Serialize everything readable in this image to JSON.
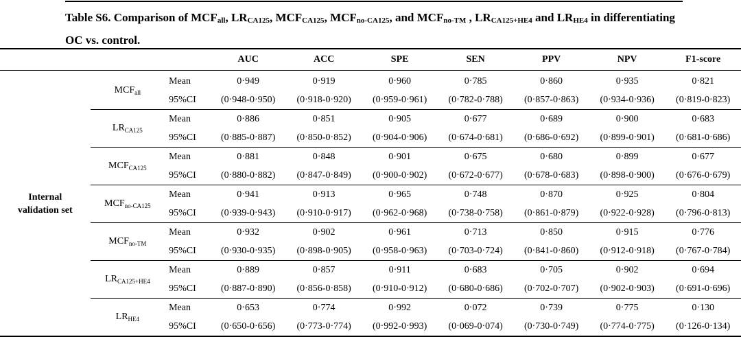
{
  "caption": {
    "line1_prefix": "Table S6. Comparison of MCF",
    "line1_parts": [
      {
        "base": "MCF",
        "sub": "all",
        "sep": ", "
      },
      {
        "base": "LR",
        "sub": "CA125",
        "sep": ", "
      },
      {
        "base": "MCF",
        "sub": "CA125",
        "sep": ", "
      },
      {
        "base": "MCF",
        "sub": "no-CA125",
        "sep": ", and "
      },
      {
        "base": "MCF",
        "sub": "no-TM",
        "sep": " , "
      },
      {
        "base": "LR",
        "sub": "CA125+HE4",
        "sep": " and "
      },
      {
        "base": "LR",
        "sub": "HE4",
        "sep": ""
      }
    ],
    "line1_suffix": " in differentiating",
    "line2": "OC vs. control."
  },
  "table": {
    "headers": [
      "AUC",
      "ACC",
      "SPE",
      "SEN",
      "PPV",
      "NPV",
      "F1-score"
    ],
    "set_label_line1": "Internal",
    "set_label_line2": "validation set",
    "stat_labels": [
      "Mean",
      "95%CI"
    ],
    "models": [
      {
        "base": "MCF",
        "sub": "all",
        "mean": [
          "0·949",
          "0·919",
          "0·960",
          "0·785",
          "0·860",
          "0·935",
          "0·821"
        ],
        "ci": [
          "(0·948-0·950)",
          "(0·918-0·920)",
          "(0·959-0·961)",
          "(0·782-0·788)",
          "(0·857-0·863)",
          "(0·934-0·936)",
          "(0·819-0·823)"
        ]
      },
      {
        "base": "LR",
        "sub": "CA125",
        "mean": [
          "0·886",
          "0·851",
          "0·905",
          "0·677",
          "0·689",
          "0·900",
          "0·683"
        ],
        "ci": [
          "(0·885-0·887)",
          "(0·850-0·852)",
          "(0·904-0·906)",
          "(0·674-0·681)",
          "(0·686-0·692)",
          "(0·899-0·901)",
          "(0·681-0·686)"
        ]
      },
      {
        "base": "MCF",
        "sub": "CA125",
        "mean": [
          "0·881",
          "0·848",
          "0·901",
          "0·675",
          "0·680",
          "0·899",
          "0·677"
        ],
        "ci": [
          "(0·880-0·882)",
          "(0·847-0·849)",
          "(0·900-0·902)",
          "(0·672-0·677)",
          "(0·678-0·683)",
          "(0·898-0·900)",
          "(0·676-0·679)"
        ]
      },
      {
        "base": "MCF",
        "sub": "no-CA125",
        "mean": [
          "0·941",
          "0·913",
          "0·965",
          "0·748",
          "0·870",
          "0·925",
          "0·804"
        ],
        "ci": [
          "(0·939-0·943)",
          "(0·910-0·917)",
          "(0·962-0·968)",
          "(0·738-0·758)",
          "(0·861-0·879)",
          "(0·922-0·928)",
          "(0·796-0·813)"
        ]
      },
      {
        "base": "MCF",
        "sub": "no-TM",
        "mean": [
          "0·932",
          "0·902",
          "0·961",
          "0·713",
          "0·850",
          "0·915",
          "0·776"
        ],
        "ci": [
          "(0·930-0·935)",
          "(0·898-0·905)",
          "(0·958-0·963)",
          "(0·703-0·724)",
          "(0·841-0·860)",
          "(0·912-0·918)",
          "(0·767-0·784)"
        ]
      },
      {
        "base": "LR",
        "sub": "CA125+HE4",
        "mean": [
          "0·889",
          "0·857",
          "0·911",
          "0·683",
          "0·705",
          "0·902",
          "0·694"
        ],
        "ci": [
          "(0·887-0·890)",
          "(0·856-0·858)",
          "(0·910-0·912)",
          "(0·680-0·686)",
          "(0·702-0·707)",
          "(0·902-0·903)",
          "(0·691-0·696)"
        ]
      },
      {
        "base": "LR",
        "sub": "HE4",
        "mean": [
          "0·653",
          "0·774",
          "0·992",
          "0·072",
          "0·739",
          "0·775",
          "0·130"
        ],
        "ci": [
          "(0·650-0·656)",
          "(0·773-0·774)",
          "(0·992-0·993)",
          "(0·069-0·074)",
          "(0·730-0·749)",
          "(0·774-0·775)",
          "(0·126-0·134)"
        ]
      }
    ]
  }
}
